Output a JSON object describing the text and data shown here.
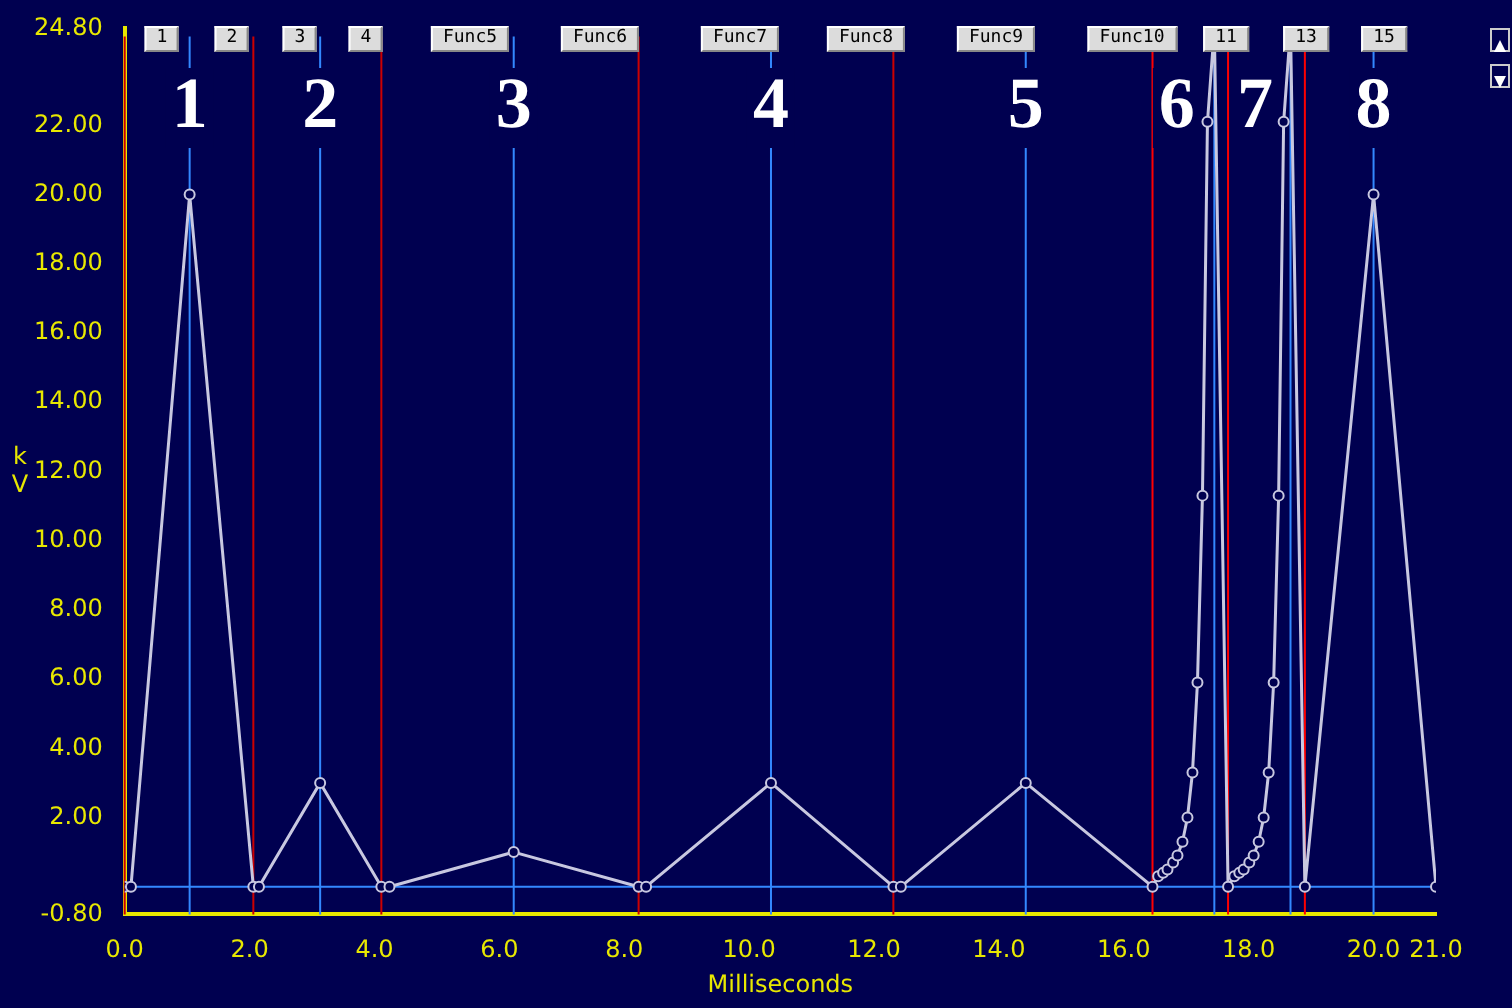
{
  "chart_data": {
    "type": "line",
    "xlabel": "Milliseconds",
    "ylabel": "kV",
    "annotations": [
      "1",
      "2",
      "3",
      "4",
      "Func5",
      "Func6",
      "Func7",
      "Func8",
      "Func9",
      "Func10",
      "11",
      "13",
      "15",
      {
        "text": "1",
        "x": 1.04,
        "y": 22.5
      },
      {
        "text": "2",
        "x": 3.13,
        "y": 22.5
      },
      {
        "text": "3",
        "x": 6.23,
        "y": 22.5
      },
      {
        "text": "4",
        "x": 10.35,
        "y": 22.5
      },
      {
        "text": "5",
        "x": 14.43,
        "y": 22.5
      },
      {
        "text": "6",
        "x": 16.85,
        "y": 22.5
      },
      {
        "text": "7",
        "x": 18.1,
        "y": 22.5
      },
      {
        "text": "8",
        "x": 20.0,
        "y": 22.5
      }
    ],
    "x": [
      0.0,
      0.1,
      1.04,
      2.06,
      2.15,
      3.13,
      4.11,
      4.24,
      6.23,
      8.23,
      8.35,
      10.35,
      12.31,
      12.43,
      14.43,
      16.46,
      16.55,
      16.63,
      16.7,
      16.79,
      16.86,
      16.94,
      17.02,
      17.1,
      17.18,
      17.26,
      17.34,
      17.45,
      17.67,
      17.77,
      17.85,
      17.92,
      18.01,
      18.08,
      18.16,
      18.24,
      18.32,
      18.4,
      18.48,
      18.56,
      18.67,
      18.9,
      20.0,
      21.0
    ],
    "series": [
      {
        "color": "#c8c8e0",
        "values": [
          0,
          0,
          20,
          0,
          0,
          3,
          0,
          0,
          1,
          0,
          0,
          3,
          0,
          0,
          3,
          0,
          0.3,
          0.4,
          0.5,
          0.7,
          0.9,
          1.3,
          2.0,
          3.3,
          5.9,
          11.3,
          22.1,
          24.8,
          0,
          0.3,
          0.4,
          0.5,
          0.7,
          0.9,
          1.3,
          2.0,
          3.3,
          5.9,
          11.3,
          22.1,
          24.8,
          0,
          20,
          0
        ]
      }
    ],
    "xlim": [
      0,
      21
    ],
    "xticks": [
      {
        "value": 0,
        "label": "0.0"
      },
      {
        "value": 2,
        "label": "2.0"
      },
      {
        "value": 4,
        "label": "4.0"
      },
      {
        "value": 6,
        "label": "6.0"
      },
      {
        "value": 8,
        "label": "8.0"
      },
      {
        "value": 10,
        "label": "10.0"
      },
      {
        "value": 12,
        "label": "12.0"
      },
      {
        "value": 14,
        "label": "14.0"
      },
      {
        "value": 16,
        "label": "16.0"
      },
      {
        "value": 18,
        "label": "18.0"
      },
      {
        "value": 20,
        "label": "20.0"
      },
      {
        "value": 21,
        "label": "21.0"
      }
    ],
    "ylim": [
      -0.8,
      24.8
    ],
    "yticks": [
      {
        "value": -0.8,
        "label": "-0.80"
      },
      {
        "value": 2,
        "label": "2.00"
      },
      {
        "value": 4,
        "label": "4.00"
      },
      {
        "value": 6,
        "label": "6.00"
      },
      {
        "value": 8,
        "label": "8.00"
      },
      {
        "value": 10,
        "label": "10.00"
      },
      {
        "value": 12,
        "label": "12.00"
      },
      {
        "value": 14,
        "label": "14.00"
      },
      {
        "value": 16,
        "label": "16.00"
      },
      {
        "value": 18,
        "label": "18.00"
      },
      {
        "value": 20,
        "label": "20.00"
      },
      {
        "value": 22,
        "label": "22.00"
      },
      {
        "value": 24.8,
        "label": "24.80"
      }
    ],
    "ref_lines": [
      {
        "axis": "x",
        "value": 0.0,
        "color": "#cc0000"
      },
      {
        "axis": "x",
        "value": 2.06,
        "color": "#cc0000"
      },
      {
        "axis": "x",
        "value": 4.11,
        "color": "#cc0000"
      },
      {
        "axis": "x",
        "value": 8.23,
        "color": "#cc0000"
      },
      {
        "axis": "x",
        "value": 12.31,
        "color": "#cc0000"
      },
      {
        "axis": "x",
        "value": 16.46,
        "color": "#ff0000"
      },
      {
        "axis": "x",
        "value": 17.67,
        "color": "#ff0000"
      },
      {
        "axis": "x",
        "value": 18.9,
        "color": "#ff0000"
      },
      {
        "axis": "x",
        "value": 1.04,
        "color": "#3388ff"
      },
      {
        "axis": "x",
        "value": 3.13,
        "color": "#3388ff"
      },
      {
        "axis": "x",
        "value": 6.23,
        "color": "#3388ff"
      },
      {
        "axis": "x",
        "value": 10.35,
        "color": "#3388ff"
      },
      {
        "axis": "x",
        "value": 14.43,
        "color": "#3388ff"
      },
      {
        "axis": "x",
        "value": 17.45,
        "color": "#3388ff"
      },
      {
        "axis": "x",
        "value": 18.67,
        "color": "#3388ff"
      },
      {
        "axis": "x",
        "value": 20.0,
        "color": "#3388ff"
      },
      {
        "axis": "y",
        "value": 0,
        "color": "#3388ff"
      }
    ],
    "grid": false,
    "legend": false,
    "marker": "circle",
    "line_style": "solid"
  }
}
